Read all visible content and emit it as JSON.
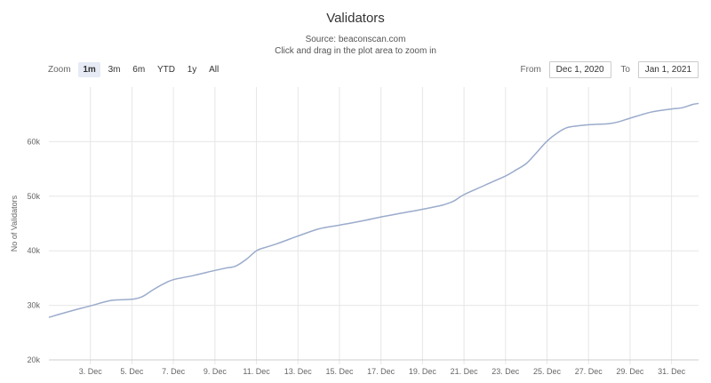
{
  "title": "Validators",
  "subtitle_line1": "Source: beaconscan.com",
  "subtitle_line2": "Click and drag in the plot area to zoom in",
  "range_selector": {
    "zoom_label": "Zoom",
    "buttons": [
      "1m",
      "3m",
      "6m",
      "YTD",
      "1y",
      "All"
    ],
    "active": "1m"
  },
  "date_inputs": {
    "from_label": "From",
    "from_value": "Dec 1, 2020",
    "to_label": "To",
    "to_value": "Jan 1, 2021"
  },
  "colors": {
    "line": "#9aabcb",
    "grid": "#e6e6e6",
    "active_button": "#e6ebf5"
  },
  "chart_data": {
    "type": "line",
    "title": "Validators",
    "ylabel": "No of Validators",
    "xlabel": "",
    "xlim": [
      1.0,
      32.3
    ],
    "ylim": [
      20000,
      70000
    ],
    "yticks": [
      20000,
      30000,
      40000,
      50000,
      60000
    ],
    "ytick_labels": [
      "20k",
      "30k",
      "40k",
      "50k",
      "60k"
    ],
    "xticks": [
      3,
      5,
      7,
      9,
      11,
      13,
      15,
      17,
      19,
      21,
      23,
      25,
      27,
      29,
      31
    ],
    "xtick_labels": [
      "3. Dec",
      "5. Dec",
      "7. Dec",
      "9. Dec",
      "11. Dec",
      "13. Dec",
      "15. Dec",
      "17. Dec",
      "19. Dec",
      "21. Dec",
      "23. Dec",
      "25. Dec",
      "27. Dec",
      "29. Dec",
      "31. Dec"
    ],
    "grid": true,
    "legend": false,
    "series": [
      {
        "x": [
          1.0,
          2.0,
          3.0,
          4.0,
          5.0,
          5.5,
          6.0,
          6.5,
          7.0,
          8.0,
          9.0,
          9.5,
          10.0,
          10.5,
          11.0,
          11.5,
          12.0,
          13.0,
          14.0,
          15.0,
          16.0,
          17.0,
          18.0,
          19.0,
          19.5,
          20.0,
          20.5,
          21.0,
          22.0,
          23.0,
          23.5,
          24.0,
          24.5,
          25.0,
          25.5,
          26.0,
          27.0,
          28.0,
          28.5,
          29.0,
          30.0,
          31.0,
          31.5,
          32.0,
          32.3
        ],
        "y": [
          27800,
          28900,
          29900,
          30900,
          31100,
          31600,
          32800,
          33900,
          34700,
          35500,
          36400,
          36800,
          37200,
          38400,
          40000,
          40700,
          41300,
          42700,
          44000,
          44700,
          45400,
          46200,
          46900,
          47600,
          48000,
          48400,
          49100,
          50300,
          52000,
          53700,
          54800,
          56000,
          58000,
          60100,
          61600,
          62600,
          63100,
          63300,
          63700,
          64300,
          65400,
          66000,
          66200,
          66800,
          67000
        ]
      }
    ]
  }
}
